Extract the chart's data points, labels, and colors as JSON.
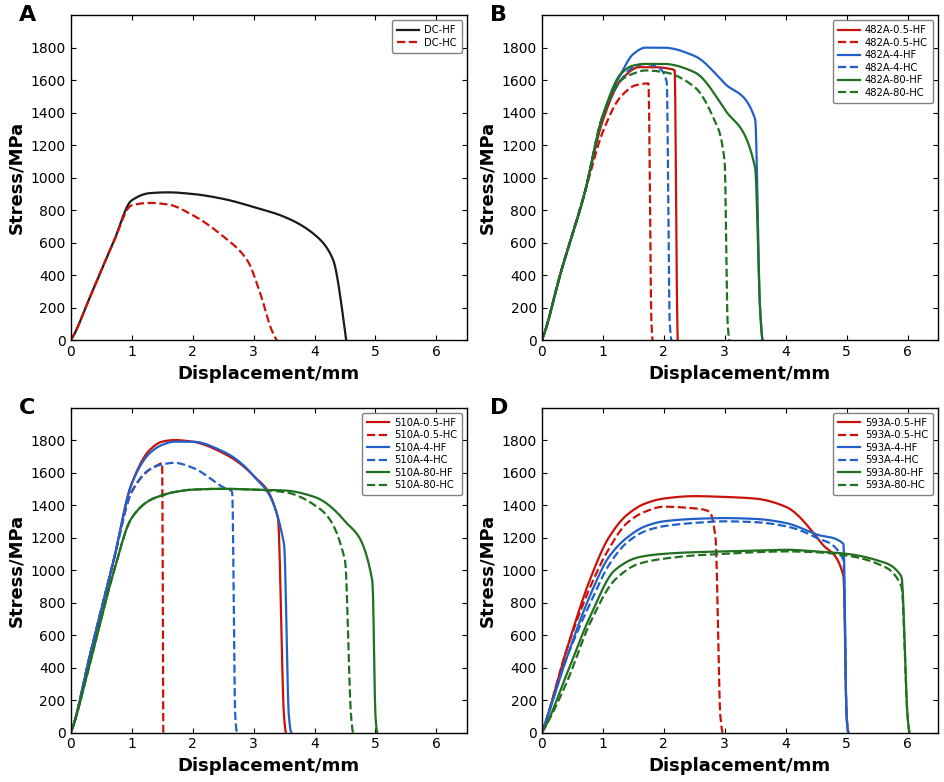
{
  "xlim": [
    0,
    6.5
  ],
  "ylim": [
    0,
    2000
  ],
  "xticks": [
    0,
    1,
    2,
    3,
    4,
    5,
    6
  ],
  "yticks": [
    0,
    200,
    400,
    600,
    800,
    1000,
    1200,
    1400,
    1600,
    1800
  ],
  "xlabel": "Displacement/mm",
  "ylabel": "Stress/MPa",
  "panel_A": {
    "label": "A",
    "curves": [
      {
        "name": "DC-HF",
        "color": "#1a1a1a",
        "linestyle": "solid",
        "x": [
          0,
          0.05,
          0.3,
          0.7,
          1.0,
          1.3,
          1.6,
          2.0,
          2.5,
          3.0,
          3.5,
          4.0,
          4.3,
          4.5,
          4.52
        ],
        "y": [
          0,
          30,
          250,
          600,
          860,
          905,
          910,
          900,
          870,
          820,
          760,
          650,
          500,
          60,
          0
        ]
      },
      {
        "name": "DC-HC",
        "color": "#C8120A",
        "linestyle": "dashed",
        "x": [
          0,
          0.05,
          0.3,
          0.7,
          1.0,
          1.3,
          1.6,
          2.0,
          2.5,
          2.9,
          3.1,
          3.3,
          3.38
        ],
        "y": [
          0,
          30,
          250,
          600,
          830,
          845,
          835,
          770,
          640,
          490,
          300,
          60,
          0
        ]
      }
    ]
  },
  "panel_B": {
    "label": "B",
    "curves": [
      {
        "name": "482A-0.5-HF",
        "color": "#C8120A",
        "linestyle": "solid",
        "x": [
          0,
          0.05,
          0.3,
          0.7,
          1.0,
          1.3,
          1.6,
          1.85,
          2.1,
          2.18,
          2.22,
          2.23
        ],
        "y": [
          0,
          50,
          400,
          900,
          1350,
          1600,
          1680,
          1680,
          1670,
          1660,
          200,
          0
        ]
      },
      {
        "name": "482A-0.5-HC",
        "color": "#C8120A",
        "linestyle": "dashed",
        "x": [
          0,
          0.05,
          0.3,
          0.7,
          1.0,
          1.3,
          1.55,
          1.75,
          1.8,
          1.82
        ],
        "y": [
          0,
          50,
          400,
          900,
          1280,
          1500,
          1570,
          1580,
          100,
          0
        ]
      },
      {
        "name": "482A-4-HF",
        "color": "#2060C8",
        "linestyle": "solid",
        "x": [
          0,
          0.05,
          0.3,
          0.7,
          1.0,
          1.3,
          1.5,
          1.7,
          2.0,
          2.5,
          3.0,
          3.5,
          3.58,
          3.62
        ],
        "y": [
          0,
          50,
          400,
          900,
          1380,
          1640,
          1760,
          1800,
          1800,
          1750,
          1580,
          1360,
          200,
          0
        ]
      },
      {
        "name": "482A-4-HC",
        "color": "#2060C8",
        "linestyle": "dashed",
        "x": [
          0,
          0.05,
          0.3,
          0.7,
          1.0,
          1.3,
          1.5,
          1.7,
          1.9,
          2.05,
          2.1,
          2.13
        ],
        "y": [
          0,
          50,
          400,
          900,
          1380,
          1600,
          1680,
          1700,
          1680,
          1590,
          100,
          0
        ]
      },
      {
        "name": "482A-80-HF",
        "color": "#207020",
        "linestyle": "solid",
        "x": [
          0,
          0.05,
          0.3,
          0.7,
          1.0,
          1.3,
          1.5,
          1.7,
          2.0,
          2.5,
          3.0,
          3.5,
          3.58,
          3.62
        ],
        "y": [
          0,
          50,
          400,
          900,
          1380,
          1640,
          1690,
          1700,
          1700,
          1650,
          1420,
          1060,
          200,
          0
        ]
      },
      {
        "name": "482A-80-HC",
        "color": "#207020",
        "linestyle": "dashed",
        "x": [
          0,
          0.05,
          0.3,
          0.7,
          1.0,
          1.3,
          1.5,
          1.7,
          2.0,
          2.5,
          2.8,
          3.0,
          3.05,
          3.08
        ],
        "y": [
          0,
          50,
          400,
          900,
          1380,
          1600,
          1640,
          1660,
          1650,
          1560,
          1380,
          1100,
          100,
          0
        ]
      }
    ]
  },
  "panel_C": {
    "label": "C",
    "curves": [
      {
        "name": "510A-0.5-HF",
        "color": "#C8120A",
        "linestyle": "solid",
        "x": [
          0,
          0.05,
          0.3,
          0.7,
          1.0,
          1.3,
          1.5,
          1.7,
          2.0,
          2.5,
          3.0,
          3.4,
          3.5,
          3.53
        ],
        "y": [
          0,
          50,
          450,
          1050,
          1530,
          1740,
          1790,
          1800,
          1790,
          1720,
          1580,
          1320,
          100,
          0
        ]
      },
      {
        "name": "510A-0.5-HC",
        "color": "#C8120A",
        "linestyle": "dashed",
        "x": [
          0,
          0.05,
          0.3,
          0.7,
          1.0,
          1.3,
          1.45,
          1.5,
          1.52
        ],
        "y": [
          0,
          50,
          450,
          1050,
          1480,
          1620,
          1650,
          1660,
          0
        ]
      },
      {
        "name": "510A-4-HF",
        "color": "#2060C8",
        "linestyle": "solid",
        "x": [
          0,
          0.05,
          0.3,
          0.7,
          1.0,
          1.3,
          1.5,
          1.7,
          2.0,
          2.5,
          3.0,
          3.5,
          3.58,
          3.62
        ],
        "y": [
          0,
          50,
          450,
          1050,
          1530,
          1720,
          1770,
          1790,
          1790,
          1730,
          1580,
          1160,
          100,
          0
        ]
      },
      {
        "name": "510A-4-HC",
        "color": "#2060C8",
        "linestyle": "dashed",
        "x": [
          0,
          0.05,
          0.3,
          0.7,
          1.0,
          1.3,
          1.5,
          1.7,
          2.0,
          2.5,
          2.65,
          2.7,
          2.73
        ],
        "y": [
          0,
          50,
          450,
          1050,
          1480,
          1620,
          1650,
          1660,
          1630,
          1510,
          1480,
          100,
          0
        ]
      },
      {
        "name": "510A-80-HF",
        "color": "#207020",
        "linestyle": "solid",
        "x": [
          0,
          0.05,
          0.3,
          0.7,
          1.0,
          1.3,
          1.5,
          1.7,
          2.0,
          2.5,
          3.0,
          3.5,
          4.0,
          4.5,
          4.95,
          5.0,
          5.03
        ],
        "y": [
          0,
          50,
          400,
          980,
          1320,
          1430,
          1460,
          1480,
          1495,
          1500,
          1495,
          1490,
          1450,
          1300,
          930,
          100,
          0
        ]
      },
      {
        "name": "510A-80-HC",
        "color": "#207020",
        "linestyle": "dashed",
        "x": [
          0,
          0.05,
          0.3,
          0.7,
          1.0,
          1.3,
          1.5,
          1.7,
          2.0,
          2.5,
          3.0,
          3.5,
          4.0,
          4.5,
          4.6,
          4.63
        ],
        "y": [
          0,
          50,
          400,
          980,
          1320,
          1430,
          1460,
          1480,
          1495,
          1500,
          1495,
          1480,
          1400,
          1060,
          100,
          0
        ]
      }
    ]
  },
  "panel_D": {
    "label": "D",
    "curves": [
      {
        "name": "593A-0.5-HF",
        "color": "#C8120A",
        "linestyle": "solid",
        "x": [
          0,
          0.05,
          0.4,
          0.8,
          1.1,
          1.4,
          1.7,
          2.0,
          2.5,
          3.0,
          3.5,
          4.0,
          4.6,
          4.95,
          5.0,
          5.03
        ],
        "y": [
          0,
          50,
          500,
          950,
          1200,
          1340,
          1410,
          1440,
          1455,
          1450,
          1440,
          1390,
          1160,
          960,
          100,
          0
        ]
      },
      {
        "name": "593A-0.5-HC",
        "color": "#C8120A",
        "linestyle": "dashed",
        "x": [
          0,
          0.05,
          0.4,
          0.8,
          1.1,
          1.4,
          1.7,
          2.0,
          2.5,
          2.75,
          2.85,
          2.93,
          2.97
        ],
        "y": [
          0,
          50,
          500,
          900,
          1130,
          1290,
          1360,
          1390,
          1380,
          1360,
          1200,
          100,
          0
        ]
      },
      {
        "name": "593A-4-HF",
        "color": "#2060C8",
        "linestyle": "solid",
        "x": [
          0,
          0.05,
          0.4,
          0.8,
          1.1,
          1.4,
          1.7,
          2.0,
          2.5,
          3.0,
          3.5,
          4.0,
          4.5,
          4.95,
          5.0,
          5.03
        ],
        "y": [
          0,
          50,
          450,
          850,
          1080,
          1200,
          1270,
          1300,
          1315,
          1320,
          1315,
          1290,
          1220,
          1160,
          100,
          0
        ]
      },
      {
        "name": "593A-4-HC",
        "color": "#2060C8",
        "linestyle": "dashed",
        "x": [
          0,
          0.05,
          0.4,
          0.8,
          1.1,
          1.4,
          1.7,
          2.0,
          2.5,
          3.0,
          3.5,
          4.0,
          4.5,
          4.95,
          5.0,
          5.03
        ],
        "y": [
          0,
          50,
          450,
          800,
          1030,
          1170,
          1240,
          1270,
          1290,
          1300,
          1295,
          1270,
          1200,
          1060,
          100,
          0
        ]
      },
      {
        "name": "593A-80-HF",
        "color": "#207020",
        "linestyle": "solid",
        "x": [
          0,
          0.05,
          0.4,
          0.8,
          1.2,
          1.6,
          2.0,
          2.5,
          3.0,
          3.5,
          4.0,
          4.5,
          5.0,
          5.5,
          5.9,
          6.0,
          6.03
        ],
        "y": [
          0,
          30,
          350,
          720,
          1000,
          1080,
          1100,
          1110,
          1115,
          1120,
          1125,
          1115,
          1100,
          1060,
          960,
          100,
          0
        ]
      },
      {
        "name": "593A-80-HC",
        "color": "#207020",
        "linestyle": "dashed",
        "x": [
          0,
          0.05,
          0.4,
          0.8,
          1.2,
          1.6,
          2.0,
          2.5,
          3.0,
          3.5,
          4.0,
          4.5,
          5.0,
          5.5,
          5.9,
          6.0,
          6.03
        ],
        "y": [
          0,
          30,
          300,
          680,
          940,
          1040,
          1070,
          1090,
          1100,
          1110,
          1115,
          1110,
          1090,
          1040,
          900,
          100,
          0
        ]
      }
    ]
  },
  "bg_color": "#ffffff",
  "linewidth": 1.6,
  "label_fontsize": 16,
  "tick_fontsize": 10,
  "axis_label_fontsize": 13
}
